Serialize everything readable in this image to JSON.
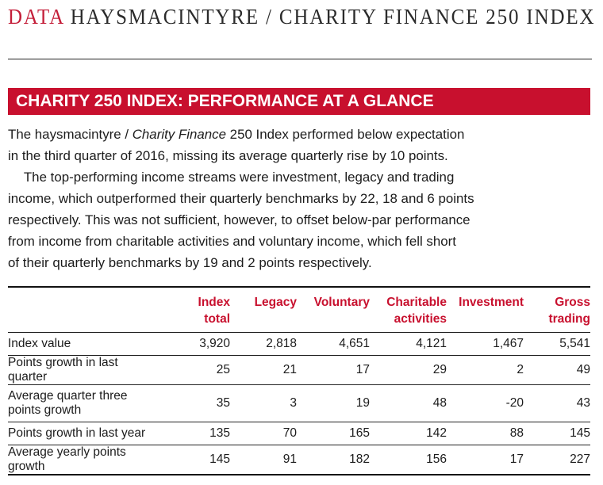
{
  "header": {
    "accent": "DATA",
    "title": "HAYSMACINTYRE / CHARITY FINANCE 250 INDEX"
  },
  "banner": {
    "title": "CHARITY 250 INDEX: PERFORMANCE AT A GLANCE"
  },
  "paragraph1": {
    "line1_pre": "The haysmacintyre / ",
    "line1_italic": "Charity Finance",
    "line1_post": " 250 Index performed below expectation",
    "line2": "in the third quarter of 2016, missing its average quarterly rise by 10 points."
  },
  "paragraph2": {
    "lines": [
      "The top-performing income streams were investment, legacy and trading",
      "income, which outperformed their quarterly benchmarks by 22, 18 and 6 points",
      "respectively. This was not sufficient, however, to offset below-par performance",
      "from income from charitable activities and voluntary income, which fell short",
      "of their quarterly benchmarks by 19 and 2 points respectively."
    ]
  },
  "table": {
    "columns": [
      {
        "line1": "Index",
        "line2": "total"
      },
      {
        "line1": "Legacy",
        "line2": ""
      },
      {
        "line1": "Voluntary",
        "line2": ""
      },
      {
        "line1": "Charitable",
        "line2": "activities"
      },
      {
        "line1": "Investment",
        "line2": ""
      },
      {
        "line1": "Gross",
        "line2": "trading"
      }
    ],
    "rows": [
      {
        "label1": "Index value",
        "label2": "",
        "values": [
          "3,920",
          "2,818",
          "4,651",
          "4,121",
          "1,467",
          "5,541"
        ]
      },
      {
        "label1": "Points growth in last quarter",
        "label2": "",
        "values": [
          "25",
          "21",
          "17",
          "29",
          "2",
          "49"
        ]
      },
      {
        "label1": "Average quarter three",
        "label2": "points growth",
        "values": [
          "35",
          "3",
          "19",
          "48",
          "-20",
          "43"
        ]
      },
      {
        "label1": "Points growth in last year",
        "label2": "",
        "values": [
          "135",
          "70",
          "165",
          "142",
          "88",
          "145"
        ]
      },
      {
        "label1": "Average yearly points growth",
        "label2": "",
        "values": [
          "145",
          "91",
          "182",
          "156",
          "17",
          "227"
        ]
      }
    ]
  }
}
